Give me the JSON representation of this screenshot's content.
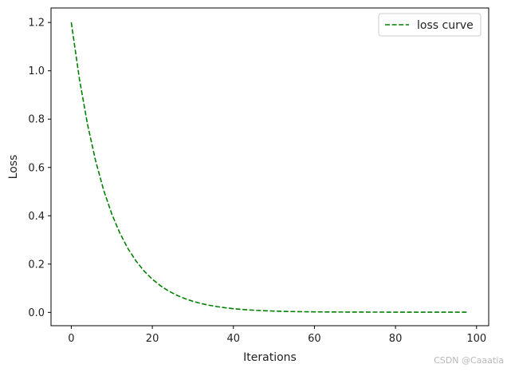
{
  "chart_data": {
    "type": "line",
    "title": "",
    "xlabel": "Iterations",
    "ylabel": "Loss",
    "xlim": [
      -5,
      103
    ],
    "ylim": [
      -0.055,
      1.26
    ],
    "x_ticks": [
      0,
      20,
      40,
      60,
      80,
      100
    ],
    "x_tick_labels": [
      "0",
      "20",
      "40",
      "60",
      "80",
      "100"
    ],
    "y_ticks": [
      0.0,
      0.2,
      0.4,
      0.6,
      0.8,
      1.0,
      1.2
    ],
    "y_tick_labels": [
      "0.0",
      "0.2",
      "0.4",
      "0.6",
      "0.8",
      "1.0",
      "1.2"
    ],
    "grid": false,
    "legend_position": "top-right",
    "series": [
      {
        "name": "loss curve",
        "color": "#008000",
        "line_style": "dashed",
        "x": [
          0,
          2,
          4,
          6,
          8,
          10,
          12,
          14,
          16,
          18,
          20,
          22,
          24,
          26,
          28,
          30,
          32,
          34,
          36,
          38,
          40,
          42,
          44,
          46,
          48,
          50,
          52,
          54,
          56,
          58,
          60,
          62,
          64,
          66,
          68,
          70,
          72,
          74,
          76,
          78,
          80,
          82,
          84,
          86,
          88,
          90,
          92,
          94,
          96,
          98
        ],
        "y": [
          1.2,
          0.9669,
          0.779,
          0.6275,
          0.5054,
          0.407,
          0.3277,
          0.2638,
          0.2122,
          0.1707,
          0.1373,
          0.1104,
          0.0887,
          0.0713,
          0.0573,
          0.046,
          0.037,
          0.0297,
          0.0239,
          0.0192,
          0.0155,
          0.0125,
          0.0101,
          0.0082,
          0.0067,
          0.0055,
          0.0045,
          0.0037,
          0.0031,
          0.0027,
          0.0023,
          0.002,
          0.0018,
          0.0016,
          0.0015,
          0.0014,
          0.0013,
          0.0012,
          0.0012,
          0.0011,
          0.0011,
          0.0011,
          0.0011,
          0.001,
          0.001,
          0.001,
          0.001,
          0.001,
          0.001,
          0.001
        ]
      }
    ]
  },
  "watermark": "CSDN @Caaatia"
}
